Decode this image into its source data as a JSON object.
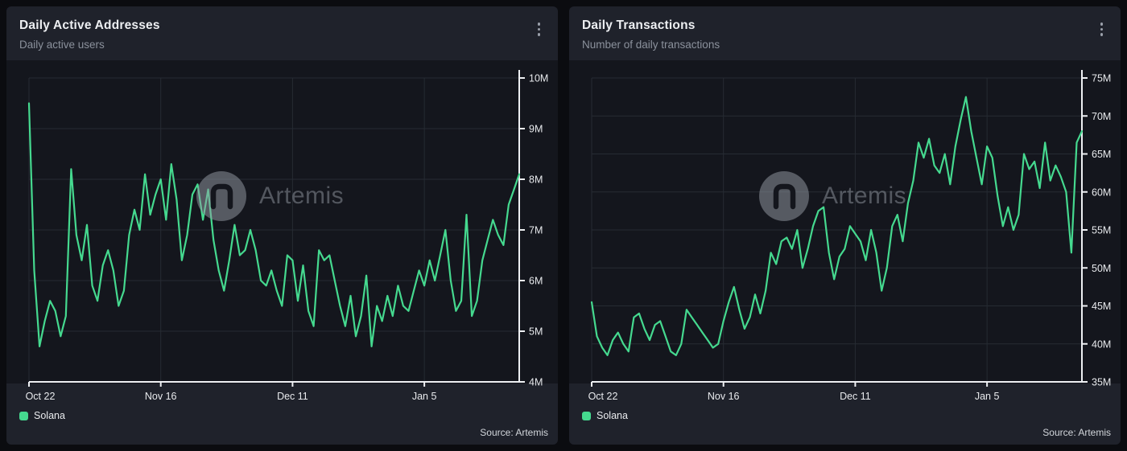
{
  "colors": {
    "accent": "#45d98f",
    "chart_bg": "#14161d",
    "panel_bg": "#1f222b",
    "page_bg": "#0b0c10",
    "grid": "#262b33",
    "axis": "#eef0f3",
    "tick_text": "#e8eaed",
    "watermark": "#969ca6"
  },
  "panels": [
    {
      "title": "Daily Active Addresses",
      "subtitle": "Daily active users",
      "watermark": "Artemis",
      "legend": [
        {
          "label": "Solana",
          "color": "#45d98f"
        }
      ],
      "source": "Source: Artemis"
    },
    {
      "title": "Daily Transactions",
      "subtitle": "Number of daily transactions",
      "watermark": "Artemis",
      "legend": [
        {
          "label": "Solana",
          "color": "#45d98f"
        }
      ],
      "source": "Source: Artemis"
    }
  ],
  "chart_data": [
    {
      "type": "line",
      "title": "Daily Active Addresses",
      "xlabel": "",
      "ylabel": "",
      "unit": "M",
      "ylim": [
        4,
        10
      ],
      "y_ticks": [
        4,
        5,
        6,
        7,
        8,
        9,
        10
      ],
      "x_ticks": [
        {
          "index": 0,
          "label": "Oct 22"
        },
        {
          "index": 25,
          "label": "Nov 16"
        },
        {
          "index": 50,
          "label": "Dec 11"
        },
        {
          "index": 75,
          "label": "Jan 5"
        }
      ],
      "grid": true,
      "legend_position": "bottom-left",
      "series": [
        {
          "name": "Solana",
          "color": "#45d98f",
          "values": [
            9.5,
            6.2,
            4.7,
            5.2,
            5.6,
            5.4,
            4.9,
            5.3,
            8.2,
            6.9,
            6.4,
            7.1,
            5.9,
            5.6,
            6.3,
            6.6,
            6.2,
            5.5,
            5.8,
            6.9,
            7.4,
            7.0,
            8.1,
            7.3,
            7.7,
            8.0,
            7.2,
            8.3,
            7.6,
            6.4,
            6.9,
            7.7,
            7.9,
            7.2,
            7.8,
            6.8,
            6.2,
            5.8,
            6.4,
            7.1,
            6.5,
            6.6,
            7.0,
            6.6,
            6.0,
            5.9,
            6.2,
            5.8,
            5.5,
            6.5,
            6.4,
            5.6,
            6.3,
            5.4,
            5.1,
            6.6,
            6.4,
            6.5,
            6.0,
            5.5,
            5.1,
            5.7,
            4.9,
            5.3,
            6.1,
            4.7,
            5.5,
            5.2,
            5.7,
            5.3,
            5.9,
            5.5,
            5.4,
            5.8,
            6.2,
            5.9,
            6.4,
            6.0,
            6.5,
            7.0,
            6.0,
            5.4,
            5.6,
            7.3,
            5.3,
            5.6,
            6.4,
            6.8,
            7.2,
            6.9,
            6.7,
            7.5,
            7.8,
            8.1
          ]
        }
      ]
    },
    {
      "type": "line",
      "title": "Daily Transactions",
      "xlabel": "",
      "ylabel": "",
      "unit": "M",
      "ylim": [
        35,
        75
      ],
      "y_ticks": [
        35,
        40,
        45,
        50,
        55,
        60,
        65,
        70,
        75
      ],
      "x_ticks": [
        {
          "index": 0,
          "label": "Oct 22"
        },
        {
          "index": 25,
          "label": "Nov 16"
        },
        {
          "index": 50,
          "label": "Dec 11"
        },
        {
          "index": 75,
          "label": "Jan 5"
        }
      ],
      "grid": true,
      "legend_position": "bottom-left",
      "series": [
        {
          "name": "Solana",
          "color": "#45d98f",
          "values": [
            45.5,
            41.0,
            39.5,
            38.5,
            40.5,
            41.5,
            40.0,
            39.0,
            43.5,
            44.0,
            42.0,
            40.5,
            42.5,
            43.0,
            41.0,
            39.0,
            38.5,
            40.0,
            44.5,
            43.5,
            42.5,
            41.5,
            40.5,
            39.5,
            40.0,
            43.0,
            45.5,
            47.5,
            44.5,
            42.0,
            43.5,
            46.5,
            44.0,
            47.0,
            52.0,
            50.5,
            53.5,
            54.0,
            52.5,
            55.0,
            50.0,
            52.5,
            55.5,
            57.5,
            58.0,
            52.0,
            48.5,
            51.5,
            52.5,
            55.5,
            54.5,
            53.5,
            51.0,
            55.0,
            52.0,
            47.0,
            50.0,
            55.5,
            57.0,
            53.5,
            58.5,
            61.5,
            66.5,
            64.5,
            67.0,
            63.5,
            62.5,
            65.0,
            61.0,
            66.0,
            69.5,
            72.5,
            68.0,
            64.5,
            61.0,
            66.0,
            64.5,
            59.5,
            55.5,
            58.0,
            55.0,
            57.0,
            65.0,
            63.0,
            64.0,
            60.5,
            66.5,
            61.5,
            63.5,
            62.0,
            60.0,
            52.0,
            66.5,
            68.0
          ]
        }
      ]
    }
  ]
}
